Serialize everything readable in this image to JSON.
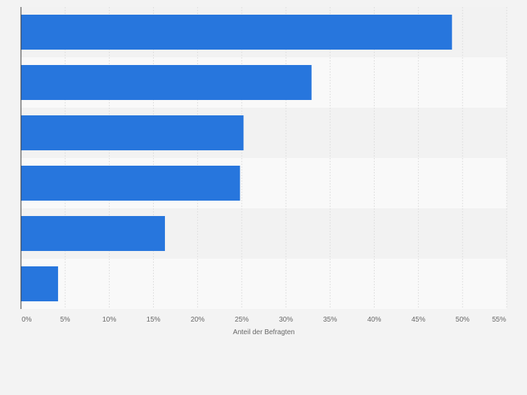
{
  "chart_data": {
    "type": "bar",
    "orientation": "horizontal",
    "title": "",
    "categories": [
      "",
      "",
      "",
      "",
      "",
      ""
    ],
    "values": [
      48.8,
      32.9,
      25.2,
      24.8,
      16.3,
      4.2
    ],
    "xlabel": "Anteil der Befragten",
    "ylabel": "",
    "xlim": [
      0,
      55
    ],
    "x_ticks": [
      "0%",
      "5%",
      "10%",
      "15%",
      "20%",
      "25%",
      "30%",
      "35%",
      "40%",
      "45%",
      "50%",
      "55%"
    ],
    "grid": true,
    "legend": "none"
  },
  "colors": {
    "bar": "#2776dd",
    "band_even": "#f2f2f2",
    "band_odd": "#f9f9f9",
    "page_background": "#f3f3f3",
    "grid": "#dddddd",
    "axis": "#333333",
    "tick_text": "#666666"
  }
}
